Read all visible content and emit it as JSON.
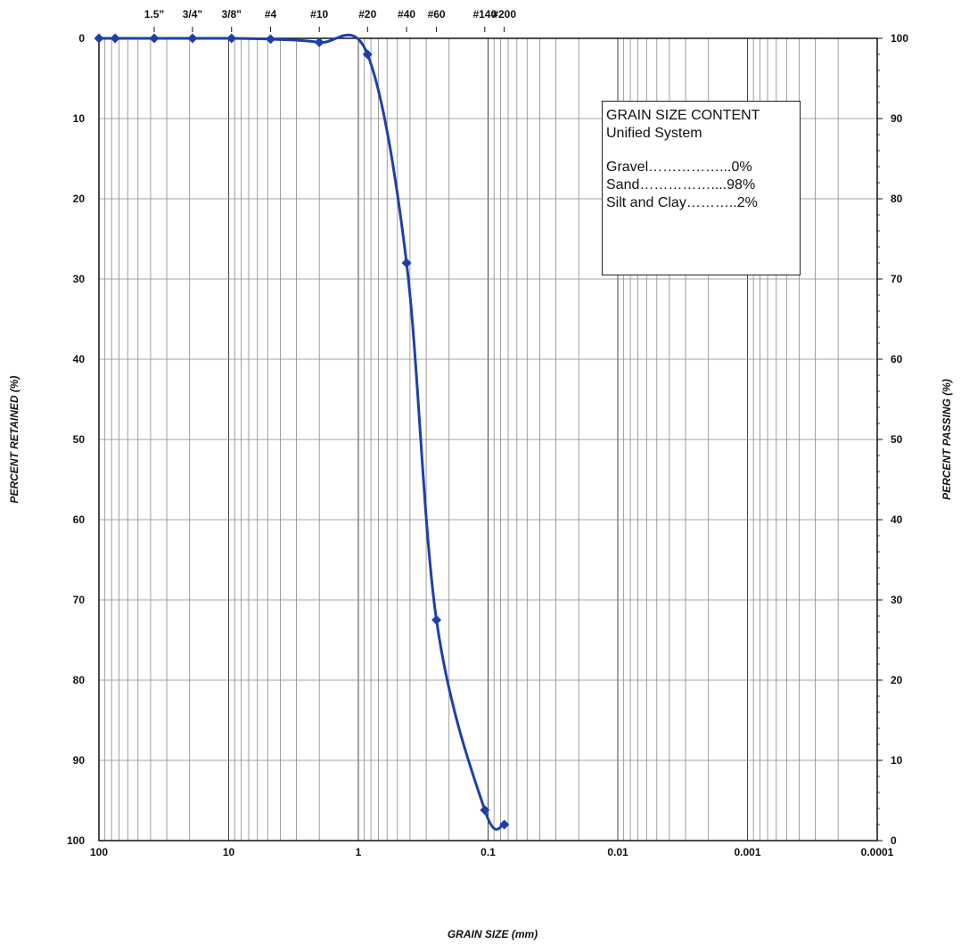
{
  "chart_data": {
    "type": "line",
    "xlabel": "GRAIN SIZE (mm)",
    "ylabel": "PERCENT RETAINED (%)",
    "y2label": "PERCENT PASSING (%)",
    "x_scale": "log",
    "x_reversed": true,
    "xlim": [
      100,
      0.0001
    ],
    "ylim": [
      0,
      100
    ],
    "y_reversed": true,
    "x_ticks": [
      {
        "value": 100,
        "label": "100"
      },
      {
        "value": 10,
        "label": "10"
      },
      {
        "value": 1,
        "label": "1"
      },
      {
        "value": 0.1,
        "label": "0.1"
      },
      {
        "value": 0.01,
        "label": "0.01"
      },
      {
        "value": 0.001,
        "label": "0.001"
      },
      {
        "value": 0.0001,
        "label": "0.0001"
      }
    ],
    "y_ticks": [
      "0",
      "10",
      "20",
      "30",
      "40",
      "50",
      "60",
      "70",
      "80",
      "90",
      "100"
    ],
    "y2_ticks": [
      "100",
      "90",
      "80",
      "70",
      "60",
      "50",
      "40",
      "30",
      "20",
      "10",
      "0"
    ],
    "sieves": [
      {
        "label": "1.5\"",
        "size": 37.5
      },
      {
        "label": "3/4\"",
        "size": 19
      },
      {
        "label": "3/8\"",
        "size": 9.5
      },
      {
        "label": "#4",
        "size": 4.75
      },
      {
        "label": "#10",
        "size": 2
      },
      {
        "label": "#20",
        "size": 0.85
      },
      {
        "label": "#40",
        "size": 0.425
      },
      {
        "label": "#60",
        "size": 0.25
      },
      {
        "label": "#140",
        "size": 0.106
      },
      {
        "label": "#200",
        "size": 0.075
      }
    ],
    "grid": true,
    "series": [
      {
        "color": "#1f3fa8",
        "marker": "diamond",
        "points": [
          {
            "x": 100,
            "y": 0
          },
          {
            "x": 75,
            "y": 0
          },
          {
            "x": 37.5,
            "y": 0
          },
          {
            "x": 19,
            "y": 0
          },
          {
            "x": 9.5,
            "y": 0
          },
          {
            "x": 4.75,
            "y": 0.1
          },
          {
            "x": 2,
            "y": 0.5
          },
          {
            "x": 0.85,
            "y": 2
          },
          {
            "x": 0.425,
            "y": 28
          },
          {
            "x": 0.25,
            "y": 72.5
          },
          {
            "x": 0.106,
            "y": 96.2
          },
          {
            "x": 0.075,
            "y": 98
          }
        ]
      }
    ]
  },
  "legend_box": {
    "title": "GRAIN SIZE CONTENT",
    "subtitle": "Unified System",
    "rows": [
      "Gravel……………...0%",
      "Sand……………....98%",
      "Silt and Clay………..2%"
    ]
  }
}
